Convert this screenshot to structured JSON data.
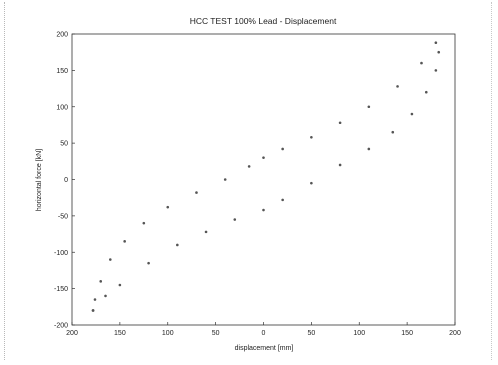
{
  "chart_data": {
    "type": "scatter",
    "title": "HCC TEST 100%   Lead - Displacement",
    "xlabel": "displacement [mm]",
    "ylabel": "horizontal force [kN]",
    "xlim": [
      -200,
      200
    ],
    "ylim": [
      -200,
      200
    ],
    "x_tick_labels": [
      "200",
      "150",
      "100",
      "50",
      "0",
      "50",
      "100",
      "150",
      "200"
    ],
    "y_tick_labels": [
      "200",
      "150",
      "100",
      "50",
      "0",
      "-50",
      "-100",
      "-150",
      "-200"
    ],
    "grid": false,
    "series": [
      {
        "values": [
          {
            "x": -178,
            "y": -180
          },
          {
            "x": -176,
            "y": -165
          },
          {
            "x": -170,
            "y": -140
          },
          {
            "x": -160,
            "y": -110
          },
          {
            "x": -145,
            "y": -85
          },
          {
            "x": -125,
            "y": -60
          },
          {
            "x": -100,
            "y": -38
          },
          {
            "x": -70,
            "y": -18
          },
          {
            "x": -40,
            "y": 0
          },
          {
            "x": -15,
            "y": 18
          },
          {
            "x": 0,
            "y": 30
          },
          {
            "x": 20,
            "y": 42
          },
          {
            "x": 50,
            "y": 58
          },
          {
            "x": 80,
            "y": 78
          },
          {
            "x": 110,
            "y": 100
          },
          {
            "x": 140,
            "y": 128
          },
          {
            "x": 165,
            "y": 160
          },
          {
            "x": 180,
            "y": 188
          },
          {
            "x": 183,
            "y": 175
          },
          {
            "x": 180,
            "y": 150
          },
          {
            "x": 170,
            "y": 120
          },
          {
            "x": 155,
            "y": 90
          },
          {
            "x": 135,
            "y": 65
          },
          {
            "x": 110,
            "y": 42
          },
          {
            "x": 80,
            "y": 20
          },
          {
            "x": 50,
            "y": -5
          },
          {
            "x": 20,
            "y": -28
          },
          {
            "x": 0,
            "y": -42
          },
          {
            "x": -30,
            "y": -55
          },
          {
            "x": -60,
            "y": -72
          },
          {
            "x": -90,
            "y": -90
          },
          {
            "x": -120,
            "y": -115
          },
          {
            "x": -150,
            "y": -145
          },
          {
            "x": -165,
            "y": -160
          },
          {
            "x": -178,
            "y": -180
          }
        ]
      }
    ]
  }
}
